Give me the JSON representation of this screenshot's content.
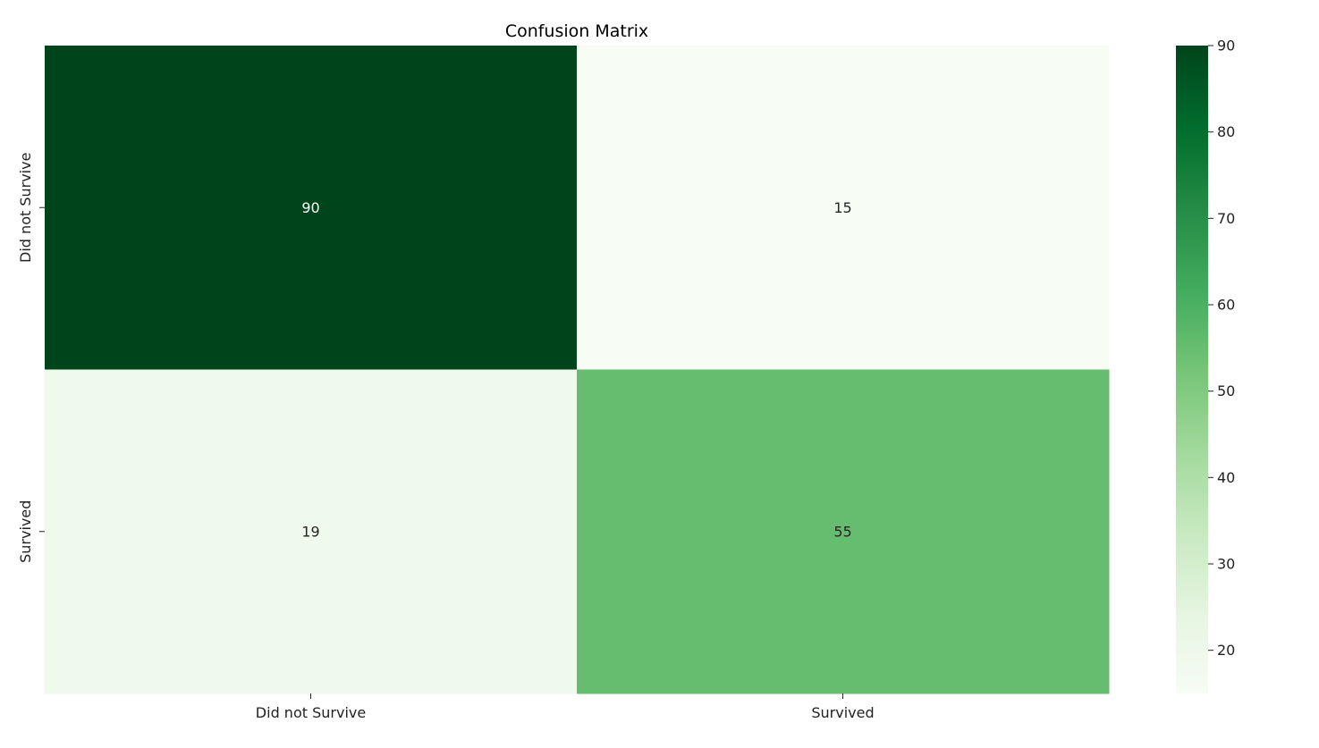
{
  "chart_data": {
    "type": "heatmap",
    "title": "Confusion Matrix",
    "xlabel": "",
    "ylabel": "",
    "x_categories": [
      "Did not Survive",
      "Survived"
    ],
    "y_categories": [
      "Did not Survive",
      "Survived"
    ],
    "values": [
      [
        90,
        15
      ],
      [
        19,
        55
      ]
    ],
    "value_labels": [
      "90",
      "15",
      "19",
      "55"
    ],
    "colormap": "Greens",
    "color_range": [
      15,
      90
    ],
    "colorbar": {
      "ticks": [
        20,
        30,
        40,
        50,
        60,
        70,
        80,
        90
      ],
      "tick_labels": [
        "20",
        "30",
        "40",
        "50",
        "60",
        "70",
        "80",
        "90"
      ],
      "placement": "right"
    },
    "grid": false
  }
}
